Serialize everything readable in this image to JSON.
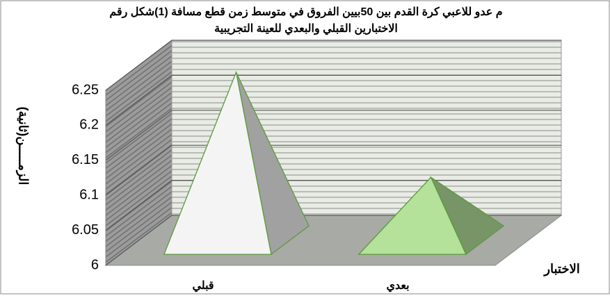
{
  "chart_data": {
    "type": "pyramid3d",
    "title": "م عدو للاعبي كرة القدم بين 50بيين الفروق في متوسط زمن قطع مسافة  (1)شكل رقم",
    "subtitle": "الاختبارين القبلي والبعدي للعينة التجريبية",
    "y_label": "(الزمـــــن(ثانية",
    "x_label": "الاختبار",
    "categories": [
      "قبلي",
      "بعدي"
    ],
    "values": [
      6.24,
      6.09
    ],
    "colors": [
      "#f4f4f4",
      "#b4e29a"
    ],
    "edge_color": "#5c9a3c",
    "ylim": [
      6,
      6.25
    ],
    "yticks": [
      6,
      6.05,
      6.1,
      6.15,
      6.2,
      6.25
    ],
    "grid": true
  }
}
